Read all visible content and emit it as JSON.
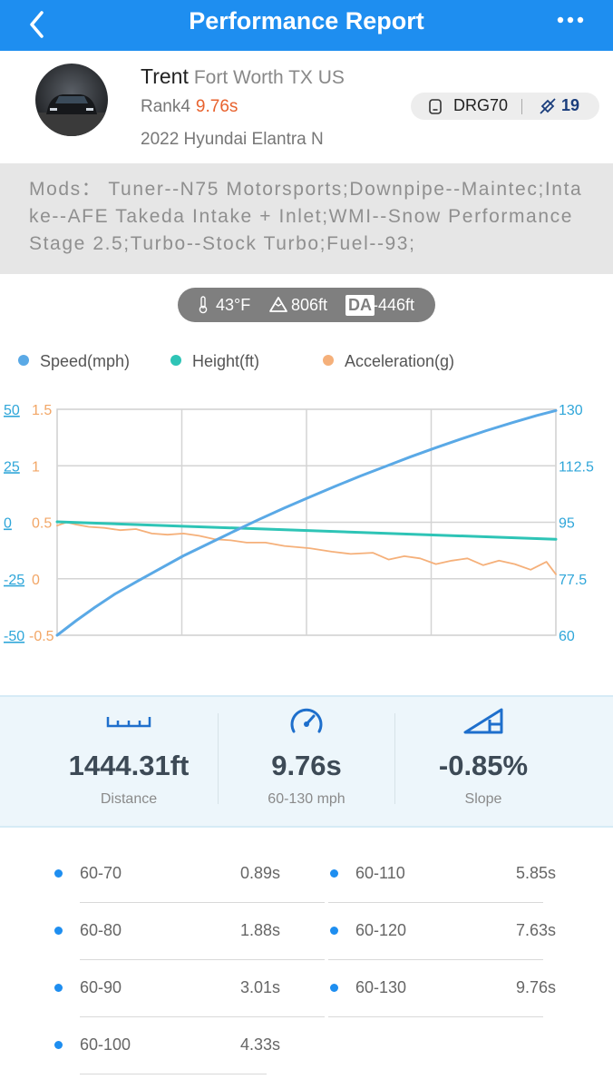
{
  "nav": {
    "title": "Performance Report"
  },
  "profile": {
    "name": "Trent",
    "location": "Fort Worth TX US",
    "rank": "Rank4",
    "rank_time": "9.76s",
    "car": "2022 Hyundai Elantra N",
    "device": "DRG70",
    "count": "19"
  },
  "mods": {
    "text": "Mods：  Tuner--N75 Motorsports;Downpipe--Maintec;Intake--AFE Takeda Intake + Inlet;WMI--Snow Performance Stage 2.5;Turbo--Stock Turbo;Fuel--93;"
  },
  "conditions": {
    "temp": "43°F",
    "elevation": "806ft",
    "da_label": "DA",
    "da_value": "-446ft"
  },
  "legend": {
    "speed": "Speed(mph)",
    "height": "Height(ft)",
    "accel": "Acceleration(g)"
  },
  "colors": {
    "nav": "#1e8ef0",
    "speed": "#5aa9e6",
    "height": "#2ec4b6",
    "accel": "#f5b07a",
    "rank_time": "#e8622e"
  },
  "chart_data": {
    "type": "line",
    "height_axis": {
      "ticks": [
        "50",
        "25",
        "0",
        "-25",
        "-50"
      ],
      "range": [
        -50,
        50
      ]
    },
    "accel_axis": {
      "ticks": [
        "1.5",
        "1",
        "0.5",
        "0",
        "-0.5"
      ],
      "range": [
        -0.5,
        1.5
      ]
    },
    "speed_axis": {
      "ticks": [
        "130",
        "112.5",
        "95",
        "77.5",
        "60"
      ],
      "range": [
        60,
        130
      ]
    },
    "grid": true,
    "legend_position": "top",
    "series": [
      {
        "name": "Speed(mph)",
        "axis": "speed",
        "values": [
          [
            0,
            60
          ],
          [
            0.06,
            64.5
          ],
          [
            0.12,
            68.7
          ],
          [
            0.18,
            72.6
          ],
          [
            0.25,
            76.5
          ],
          [
            0.32,
            80.3
          ],
          [
            0.4,
            84.6
          ],
          [
            0.48,
            88.4
          ],
          [
            0.56,
            92.2
          ],
          [
            0.64,
            95.9
          ],
          [
            0.72,
            99.4
          ],
          [
            0.8,
            102.8
          ],
          [
            0.88,
            106.1
          ],
          [
            0.96,
            109.3
          ],
          [
            1.04,
            112.3
          ],
          [
            1.12,
            115.3
          ],
          [
            1.2,
            118.1
          ],
          [
            1.28,
            120.8
          ],
          [
            1.36,
            123.4
          ],
          [
            1.44,
            125.8
          ],
          [
            1.52,
            128.1
          ],
          [
            1.58,
            129.6
          ]
        ]
      },
      {
        "name": "Height(ft)",
        "axis": "height",
        "values": [
          [
            0,
            0.2
          ],
          [
            1.58,
            -7.5
          ]
        ]
      },
      {
        "name": "Acceleration(g)",
        "axis": "accel",
        "values": [
          [
            0,
            0.47
          ],
          [
            0.03,
            0.5
          ],
          [
            0.06,
            0.48
          ],
          [
            0.1,
            0.46
          ],
          [
            0.15,
            0.45
          ],
          [
            0.2,
            0.43
          ],
          [
            0.25,
            0.44
          ],
          [
            0.3,
            0.4
          ],
          [
            0.35,
            0.39
          ],
          [
            0.4,
            0.4
          ],
          [
            0.45,
            0.38
          ],
          [
            0.5,
            0.35
          ],
          [
            0.55,
            0.34
          ],
          [
            0.6,
            0.32
          ],
          [
            0.66,
            0.32
          ],
          [
            0.72,
            0.29
          ],
          [
            0.8,
            0.27
          ],
          [
            0.87,
            0.24
          ],
          [
            0.93,
            0.22
          ],
          [
            1.0,
            0.23
          ],
          [
            1.05,
            0.17
          ],
          [
            1.1,
            0.2
          ],
          [
            1.15,
            0.18
          ],
          [
            1.2,
            0.13
          ],
          [
            1.25,
            0.16
          ],
          [
            1.3,
            0.18
          ],
          [
            1.35,
            0.12
          ],
          [
            1.4,
            0.16
          ],
          [
            1.45,
            0.13
          ],
          [
            1.5,
            0.08
          ],
          [
            1.55,
            0.15
          ],
          [
            1.58,
            0.04
          ]
        ]
      }
    ]
  },
  "stats": [
    {
      "value": "1444.31ft",
      "label": "Distance"
    },
    {
      "value": "9.76s",
      "label": "60-130 mph"
    },
    {
      "value": "-0.85%",
      "label": "Slope"
    }
  ],
  "splits": [
    {
      "range": "60-70",
      "time": "0.89s"
    },
    {
      "range": "60-80",
      "time": "1.88s"
    },
    {
      "range": "60-90",
      "time": "3.01s"
    },
    {
      "range": "60-100",
      "time": "4.33s"
    },
    {
      "range": "60-110",
      "time": "5.85s"
    },
    {
      "range": "60-120",
      "time": "7.63s"
    },
    {
      "range": "60-130",
      "time": "9.76s"
    }
  ]
}
